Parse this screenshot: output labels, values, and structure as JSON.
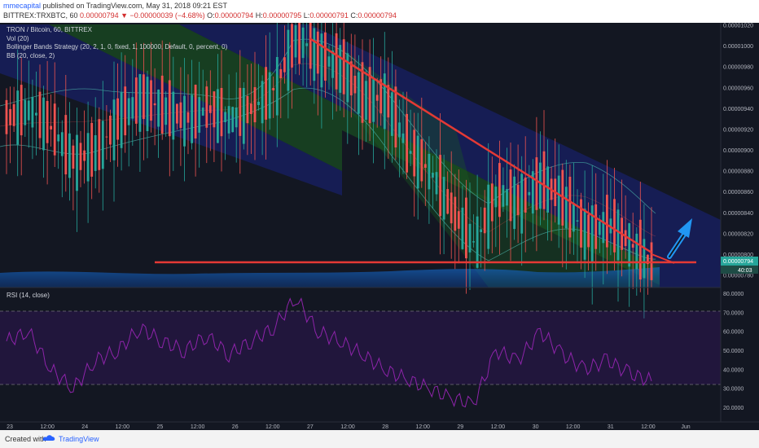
{
  "header": {
    "author": "mmecapital",
    "published_text": " published on TradingView.com, May 31, 2018 09:21 EST",
    "symbol": "BITTREX:TRXBTC, 60",
    "last_price": "0.00000794",
    "change": "▼ −0.00000039 (−4.68%)",
    "o_label": "O:",
    "o_value": "0.00000794",
    "h_label": "H:",
    "h_value": "0.00000795",
    "l_label": "L:",
    "l_value": "0.00000791",
    "c_label": "C:",
    "c_value": "0.00000794"
  },
  "legend": {
    "line1": "TRON / Bitcoin, 60, BITTREX",
    "line2": "Vol (20)",
    "line3": "Bollinger Bands Strategy (20, 2, 1, 0, fixed, 1, 100000, Default, 0, percent, 0)",
    "line4": "BB (20, close, 2)",
    "rsi": "RSI (14, close)"
  },
  "price_axis": {
    "ticks": [
      "0.00001020",
      "0.00001000",
      "0.00000980",
      "0.00000960",
      "0.00000940",
      "0.00000920",
      "0.00000900",
      "0.00000880",
      "0.00000860",
      "0.00000840",
      "0.00000820",
      "0.00000800",
      "0.00000780"
    ],
    "current_price_tag": "0.00000794",
    "countdown_tag": "40:03"
  },
  "rsi_axis": {
    "ticks": [
      "80.0000",
      "70.0000",
      "60.0000",
      "50.0000",
      "40.0000",
      "30.0000",
      "20.0000"
    ]
  },
  "time_axis": {
    "labels": [
      "23",
      "12:00",
      "24",
      "12:00",
      "25",
      "12:00",
      "26",
      "12:00",
      "27",
      "12:00",
      "28",
      "12:00",
      "29",
      "12:00",
      "30",
      "12:00",
      "31",
      "12:00",
      "Jun"
    ]
  },
  "footer": {
    "created_with": "Created with",
    "brand": "TradingView"
  },
  "colors": {
    "background": "#131722",
    "up_candle": "#26a69a",
    "down_candle": "#ef5350",
    "trendline": "#e53935",
    "arrow": "#2196f3",
    "rsi_line": "#8e24aa",
    "channel_green": "#1b5e20",
    "channel_blue": "#1a237e"
  },
  "chart_data": [
    {
      "type": "candlestick",
      "title": "TRON / Bitcoin, 60, BITTREX",
      "x_labels": [
        "23",
        "12:00",
        "24",
        "12:00",
        "25",
        "12:00",
        "26",
        "12:00",
        "27",
        "12:00",
        "28",
        "12:00",
        "29",
        "12:00",
        "30",
        "12:00",
        "31",
        "12:00",
        "Jun"
      ],
      "ylim": [
        7.8e-06,
        1.02e-05
      ],
      "series": [
        {
          "name": "close",
          "values": [
            9.3e-06,
            9.4e-06,
            9.2e-06,
            8.9e-06,
            9e-06,
            9.3e-06,
            9.5e-06,
            9.4e-06,
            9.3e-06,
            9.4e-06,
            9.3e-06,
            9.4e-06,
            9.6e-06,
            1.01e-05,
            9.9e-06,
            9.8e-06,
            9.5e-06,
            9.5e-06,
            9e-06,
            8.8e-06,
            8.4e-06,
            8.1e-06,
            8.6e-06,
            8.5e-06,
            8.7e-06,
            8.5e-06,
            8.2e-06,
            8.3e-06,
            8.1e-06,
            7.9e-06
          ]
        },
        {
          "name": "BB (20, close, 2)",
          "values": []
        },
        {
          "name": "Vol (20)",
          "values": []
        }
      ],
      "annotations": {
        "descending_trendline": {
          "from": {
            "x": "27",
            "y": 1.007e-05
          },
          "to": {
            "x": "31 12:00",
            "y": 7.95e-06
          }
        },
        "support_line": {
          "y": 7.94e-06
        },
        "arrow": "up, breakout expected"
      }
    },
    {
      "type": "line",
      "title": "RSI (14, close)",
      "ylim": [
        15,
        82
      ],
      "bands": [
        30,
        70
      ],
      "series": [
        {
          "name": "RSI",
          "values": [
            55,
            60,
            40,
            30,
            45,
            50,
            62,
            55,
            50,
            58,
            48,
            55,
            62,
            78,
            60,
            55,
            48,
            40,
            35,
            30,
            25,
            22,
            50,
            45,
            60,
            48,
            40,
            45,
            38,
            34
          ]
        }
      ]
    }
  ]
}
